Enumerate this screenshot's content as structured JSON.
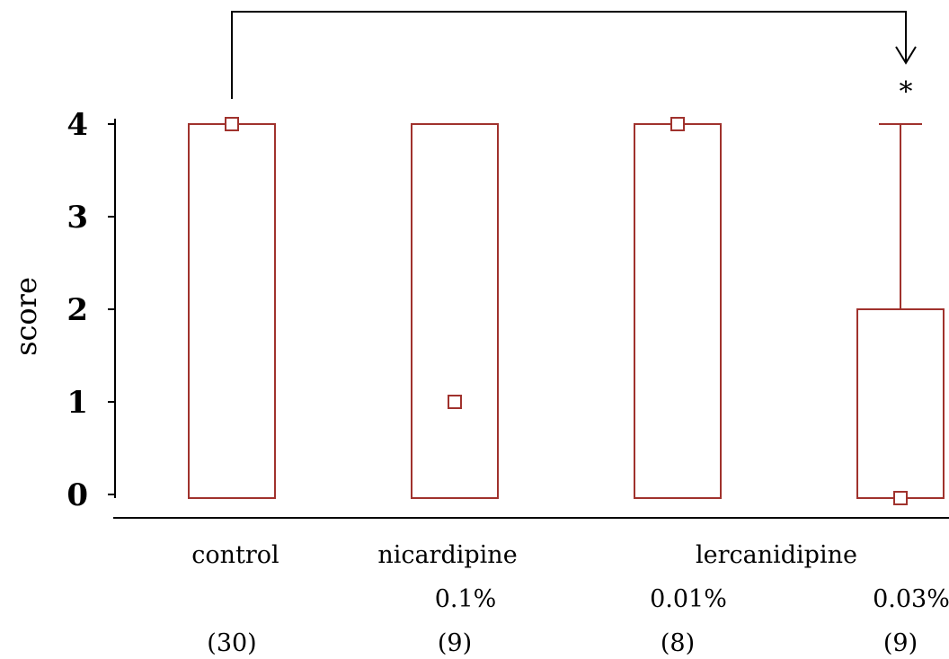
{
  "chart_data": {
    "type": "box",
    "ylabel": "score",
    "ylim": [
      0,
      4
    ],
    "yticks": [
      "0",
      "1",
      "2",
      "3",
      "4"
    ],
    "groups": [
      {
        "label": "control",
        "sublabel": "",
        "n": "(30)",
        "q1": 0,
        "q3": 4,
        "median": 4,
        "whisker_low": 0,
        "whisker_high": 4
      },
      {
        "label": "nicardipine",
        "sublabel": "0.1%",
        "n": "(9)",
        "q1": 0,
        "q3": 4,
        "median": 1,
        "whisker_low": 0,
        "whisker_high": 4
      },
      {
        "label": "",
        "sublabel": "0.01%",
        "n": "(8)",
        "q1": 0,
        "q3": 4,
        "median": 4,
        "whisker_low": 0,
        "whisker_high": 4
      },
      {
        "label": "",
        "sublabel": "0.03%",
        "n": "(9)",
        "q1": 0,
        "q3": 2,
        "median": 0,
        "whisker_low": 0,
        "whisker_high": 4
      }
    ],
    "group_header": "lercanidipine",
    "significance": {
      "from_group": 0,
      "to_group": 3,
      "marker": "*"
    },
    "colors": {
      "box": "#a0322d",
      "axis": "#000000"
    }
  }
}
